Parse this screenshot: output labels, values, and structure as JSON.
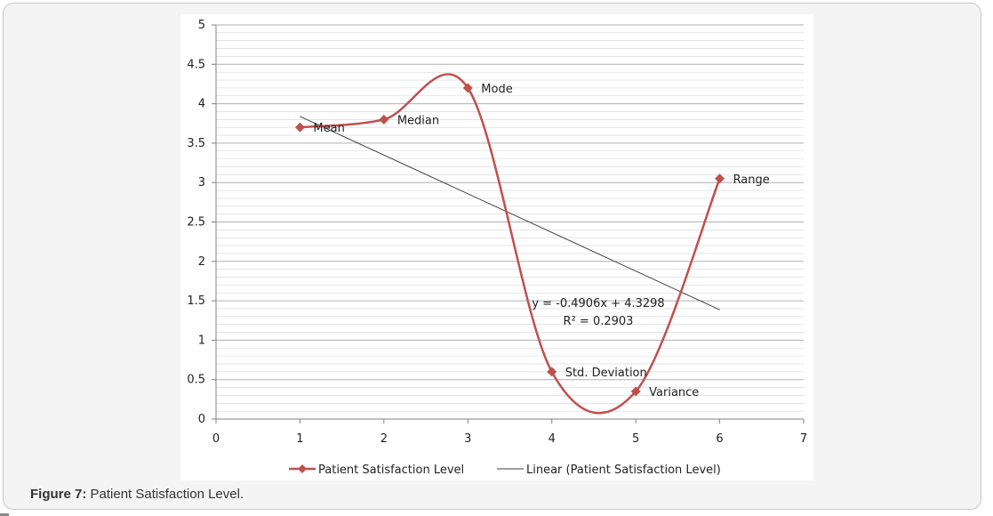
{
  "caption": {
    "label": "Figure 7:",
    "text": " Patient Satisfaction Level."
  },
  "colors": {
    "series": "#c0504d",
    "trendline": "#404040",
    "grid": "#b0b0b0",
    "background": "#f4f4f4"
  },
  "chart_data": {
    "type": "line",
    "xlim": [
      0,
      7
    ],
    "ylim": [
      0,
      5
    ],
    "x_ticks": [
      "0",
      "1",
      "2",
      "3",
      "4",
      "5",
      "6",
      "7"
    ],
    "y_ticks": [
      "0",
      "0.5",
      "1",
      "1.5",
      "2",
      "2.5",
      "3",
      "3.5",
      "4",
      "4.5",
      "5"
    ],
    "grid": true,
    "smooth": true,
    "legend_position": "bottom",
    "series": [
      {
        "name": "Patient Satisfaction Level",
        "x": [
          1,
          2,
          3,
          4,
          5,
          6
        ],
        "y": [
          3.7,
          3.8,
          4.2,
          0.6,
          0.35,
          3.05
        ],
        "point_labels": [
          "Mean",
          "Median",
          "Mode",
          "Std. Deviation",
          "Variance",
          "Range"
        ]
      }
    ],
    "trendline": {
      "name": "Linear (Patient Satisfaction Level)",
      "slope": -0.4906,
      "intercept": 4.3298,
      "x_range": [
        1,
        6
      ],
      "equation": "y = -0.4906x + 4.3298",
      "r_squared": "R² = 0.2903"
    }
  }
}
